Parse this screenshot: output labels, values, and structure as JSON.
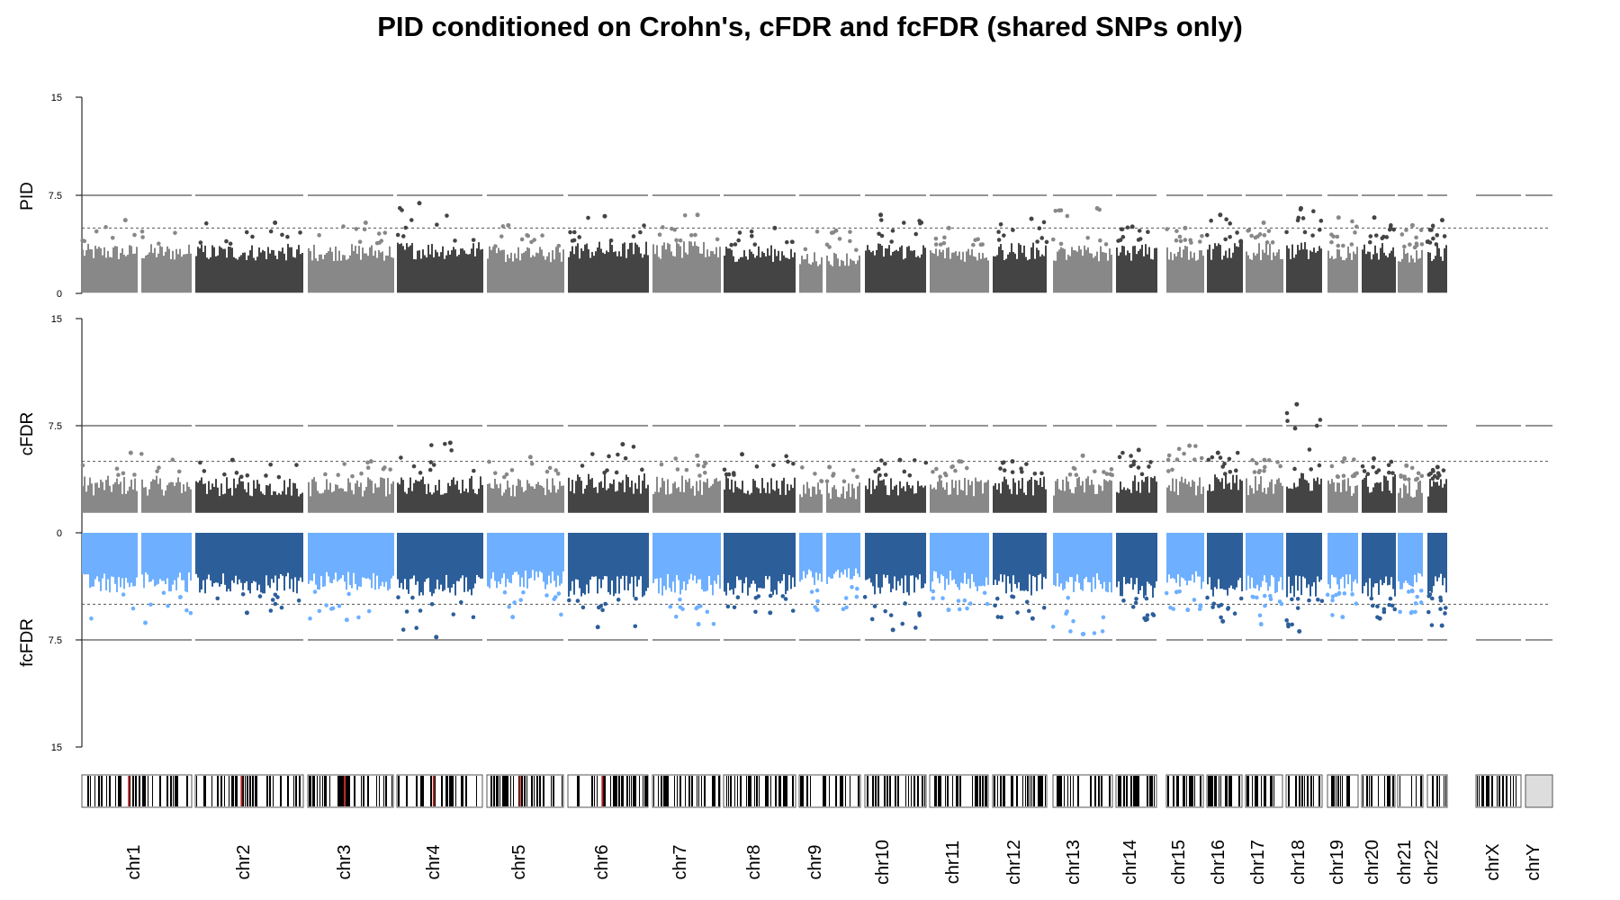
{
  "chart_data": {
    "type": "scatter",
    "title": "PID conditioned on Crohn's, cFDR and fcFDR (shared SNPs only)",
    "panels": [
      {
        "name": "PID",
        "ylabel": "PID",
        "ylim": [
          0,
          15
        ],
        "ticks": [
          "15",
          "7.5",
          "0"
        ],
        "solid_line": 7.5,
        "dashed_line": 5,
        "direction": "up"
      },
      {
        "name": "cFDR",
        "ylabel": "cFDR",
        "ylim": [
          0,
          15
        ],
        "ticks": [
          "15",
          "7.5",
          "0"
        ],
        "solid_line": 7.5,
        "dashed_line": 5,
        "direction": "up"
      },
      {
        "name": "fcFDR",
        "ylabel": "fcFDR",
        "ylim": [
          0,
          15
        ],
        "ticks": [
          "7.5",
          "15"
        ],
        "solid_line": 7.5,
        "dashed_line": 5,
        "direction": "down"
      }
    ],
    "colors": {
      "grey_light": "#888888",
      "grey_dark": "#444444",
      "blue_light": "#6eb0ff",
      "blue_dark": "#2c5e9a",
      "threshold_line": "#555555",
      "ideogram_band": "#000000",
      "centromere": "#b22222"
    },
    "chromosomes": [
      {
        "label": "chr1",
        "pid_max": 5.6,
        "pid_peak": 3.8,
        "cfdr_max": 5.6,
        "cfdr_peak": 4.0,
        "fcfdr_max": 6.3,
        "fcfdr_peak": 4.2
      },
      {
        "label": "chr2",
        "pid_max": 5.4,
        "pid_peak": 3.8,
        "cfdr_max": 5.1,
        "cfdr_peak": 3.9,
        "fcfdr_max": 5.6,
        "fcfdr_peak": 4.3
      },
      {
        "label": "chr3",
        "pid_max": 5.4,
        "pid_peak": 3.8,
        "cfdr_max": 5.0,
        "cfdr_peak": 3.9,
        "fcfdr_max": 6.1,
        "fcfdr_peak": 4.1
      },
      {
        "label": "chr4",
        "pid_max": 6.9,
        "pid_peak": 4.0,
        "cfdr_max": 6.3,
        "cfdr_peak": 4.1,
        "fcfdr_max": 7.3,
        "fcfdr_peak": 4.5
      },
      {
        "label": "chr5",
        "pid_max": 5.2,
        "pid_peak": 3.6,
        "cfdr_max": 5.3,
        "cfdr_peak": 3.9,
        "fcfdr_max": 5.9,
        "fcfdr_peak": 4.0
      },
      {
        "label": "chr6",
        "pid_max": 5.9,
        "pid_peak": 4.0,
        "cfdr_max": 6.2,
        "cfdr_peak": 4.2,
        "fcfdr_max": 6.6,
        "fcfdr_peak": 4.6
      },
      {
        "label": "chr7",
        "pid_max": 6.0,
        "pid_peak": 4.0,
        "cfdr_max": 5.4,
        "cfdr_peak": 4.0,
        "fcfdr_max": 6.4,
        "fcfdr_peak": 4.4
      },
      {
        "label": "chr8",
        "pid_max": 5.0,
        "pid_peak": 3.7,
        "cfdr_max": 5.5,
        "cfdr_peak": 4.0,
        "fcfdr_max": 5.6,
        "fcfdr_peak": 4.4
      },
      {
        "label": "chr9",
        "pid_max": 4.8,
        "pid_peak": 3.2,
        "cfdr_max": 4.6,
        "cfdr_peak": 3.6,
        "fcfdr_max": 5.4,
        "fcfdr_peak": 3.8
      },
      {
        "label": "chr10",
        "pid_max": 6.0,
        "pid_peak": 3.9,
        "cfdr_max": 5.1,
        "cfdr_peak": 4.0,
        "fcfdr_max": 6.8,
        "fcfdr_peak": 4.4
      },
      {
        "label": "chr11",
        "pid_max": 5.0,
        "pid_peak": 3.7,
        "cfdr_max": 5.0,
        "cfdr_peak": 3.9,
        "fcfdr_max": 5.4,
        "fcfdr_peak": 4.1
      },
      {
        "label": "chr12",
        "pid_max": 5.7,
        "pid_peak": 3.9,
        "cfdr_max": 5.0,
        "cfdr_peak": 4.0,
        "fcfdr_max": 6.0,
        "fcfdr_peak": 4.4
      },
      {
        "label": "chr13",
        "pid_max": 6.5,
        "pid_peak": 3.7,
        "cfdr_max": 5.4,
        "cfdr_peak": 4.0,
        "fcfdr_max": 7.1,
        "fcfdr_peak": 4.2
      },
      {
        "label": "chr14",
        "pid_max": 5.1,
        "pid_peak": 3.8,
        "cfdr_max": 5.8,
        "cfdr_peak": 4.1,
        "fcfdr_max": 6.1,
        "fcfdr_peak": 4.6
      },
      {
        "label": "chr15",
        "pid_max": 5.0,
        "pid_peak": 3.7,
        "cfdr_max": 6.1,
        "cfdr_peak": 4.0,
        "fcfdr_max": 5.4,
        "fcfdr_peak": 4.1
      },
      {
        "label": "chr16",
        "pid_max": 6.0,
        "pid_peak": 3.9,
        "cfdr_max": 5.6,
        "cfdr_peak": 4.1,
        "fcfdr_max": 6.2,
        "fcfdr_peak": 4.5
      },
      {
        "label": "chr17",
        "pid_max": 5.4,
        "pid_peak": 3.9,
        "cfdr_max": 5.1,
        "cfdr_peak": 4.0,
        "fcfdr_max": 6.4,
        "fcfdr_peak": 4.4
      },
      {
        "label": "chr18",
        "pid_max": 6.5,
        "pid_peak": 4.0,
        "cfdr_max": 9.0,
        "cfdr_peak": 4.3,
        "fcfdr_max": 6.9,
        "fcfdr_peak": 4.6
      },
      {
        "label": "chr19",
        "pid_max": 5.8,
        "pid_peak": 3.6,
        "cfdr_max": 5.2,
        "cfdr_peak": 3.9,
        "fcfdr_max": 5.9,
        "fcfdr_peak": 4.2
      },
      {
        "label": "chr20",
        "pid_max": 5.8,
        "pid_peak": 3.9,
        "cfdr_max": 5.2,
        "cfdr_peak": 4.1,
        "fcfdr_max": 6.0,
        "fcfdr_peak": 4.6
      },
      {
        "label": "chr21",
        "pid_max": 5.2,
        "pid_peak": 3.5,
        "cfdr_max": 4.7,
        "cfdr_peak": 3.7,
        "fcfdr_max": 5.6,
        "fcfdr_peak": 4.0
      },
      {
        "label": "chr22",
        "pid_max": 5.6,
        "pid_peak": 3.7,
        "cfdr_max": 4.6,
        "cfdr_peak": 3.8,
        "fcfdr_max": 6.5,
        "fcfdr_peak": 4.3
      },
      {
        "label": "chrX",
        "pid_max": null,
        "pid_peak": null,
        "cfdr_max": null,
        "cfdr_peak": null,
        "fcfdr_max": null,
        "fcfdr_peak": null
      },
      {
        "label": "chrY",
        "pid_max": null,
        "pid_peak": null,
        "cfdr_max": null,
        "cfdr_peak": null,
        "fcfdr_max": null,
        "fcfdr_peak": null
      }
    ]
  }
}
